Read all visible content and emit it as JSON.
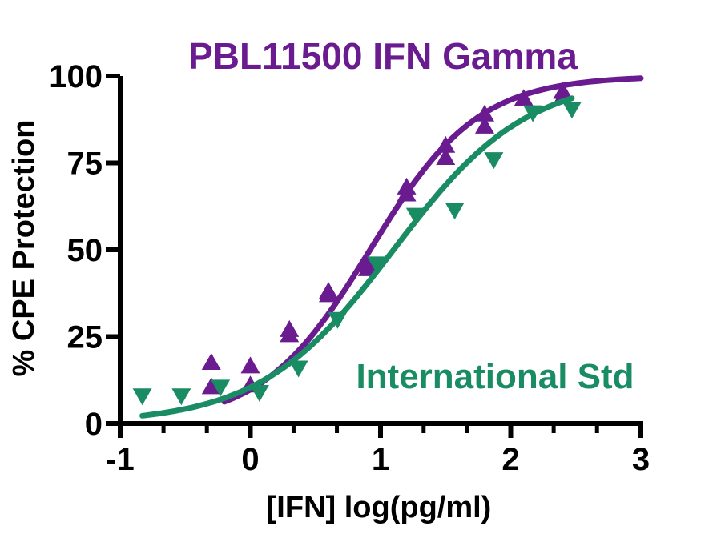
{
  "chart_data": {
    "type": "scatter",
    "title": "PBL11500 IFN Gamma",
    "xlabel": "[IFN] log(pg/ml)",
    "ylabel": "% CPE Protection",
    "xlim": [
      -1,
      3
    ],
    "ylim": [
      0,
      100
    ],
    "xticks": [
      "-1",
      "0",
      "1",
      "2",
      "3"
    ],
    "yticks": [
      "0",
      "25",
      "50",
      "75",
      "100"
    ],
    "grid": false,
    "series": [
      {
        "name": "PBL11500 IFN Gamma",
        "color": "#6a1b8f",
        "marker": "triangle-up",
        "points": [
          [
            -0.3,
            17.5
          ],
          [
            -0.3,
            10.5
          ],
          [
            0.0,
            16.5
          ],
          [
            0.0,
            11.0
          ],
          [
            0.3,
            27.0
          ],
          [
            0.3,
            25.5
          ],
          [
            0.6,
            38.0
          ],
          [
            0.6,
            37.0
          ],
          [
            0.9,
            46.0
          ],
          [
            0.9,
            44.5
          ],
          [
            1.2,
            68.0
          ],
          [
            1.2,
            66.0
          ],
          [
            1.5,
            80.0
          ],
          [
            1.5,
            76.5
          ],
          [
            1.8,
            89.0
          ],
          [
            1.8,
            85.5
          ],
          [
            2.1,
            93.5
          ],
          [
            2.4,
            95.5
          ],
          [
            2.4,
            94.0
          ]
        ],
        "fit": {
          "bottom": 0,
          "top": 100,
          "logEC50": 0.92,
          "hill": 1.05,
          "x_range": [
            -0.2,
            3
          ]
        }
      },
      {
        "name": "International Std",
        "color": "#1a8c64",
        "marker": "triangle-down",
        "points": [
          [
            -0.83,
            8.0
          ],
          [
            -0.53,
            8.0
          ],
          [
            -0.23,
            10.5
          ],
          [
            0.07,
            9.0
          ],
          [
            0.37,
            16.0
          ],
          [
            0.67,
            30.0
          ],
          [
            0.97,
            46.0
          ],
          [
            1.27,
            60.0
          ],
          [
            1.57,
            61.5
          ],
          [
            1.87,
            76.0
          ],
          [
            2.17,
            89.5
          ],
          [
            2.47,
            90.5
          ]
        ],
        "fit": {
          "bottom": 0,
          "top": 100,
          "logEC50": 1.1,
          "hill": 0.85,
          "x_range": [
            -0.83,
            2.47
          ]
        }
      }
    ]
  }
}
